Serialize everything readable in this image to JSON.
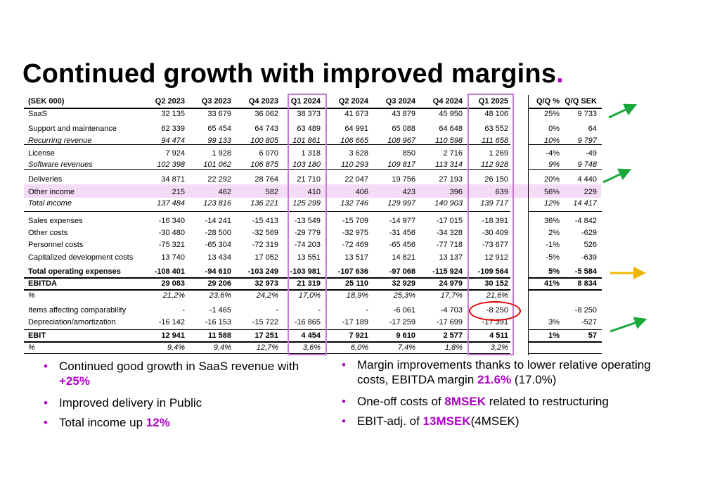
{
  "title": "Continued growth with improved margins",
  "title_dot": ".",
  "header_label": "(SEK 000)",
  "columns": [
    "Q2 2023",
    "Q3 2023",
    "Q4 2023",
    "Q1 2024",
    "Q2 2024",
    "Q3 2024",
    "Q4 2024",
    "Q1 2025"
  ],
  "qq_headers": [
    "Q/Q %",
    "Q/Q SEK"
  ],
  "rows": [
    {
      "label": "SaaS",
      "values": [
        "32 135",
        "33 679",
        "36 062",
        "38 373",
        "41 673",
        "43 879",
        "45 950",
        "48 106"
      ],
      "qq_pct": "25%",
      "qq_sek": "9 733",
      "style": ""
    },
    {
      "label": "Support and maintenance",
      "values": [
        "62 339",
        "65 454",
        "64 743",
        "63 489",
        "64 991",
        "65 088",
        "64 648",
        "63 552"
      ],
      "qq_pct": "0%",
      "qq_sek": "64",
      "style": ""
    },
    {
      "label": "Recurring revenue",
      "values": [
        "94 474",
        "99 133",
        "100 805",
        "101 861",
        "106 665",
        "108 967",
        "110 598",
        "111 658"
      ],
      "qq_pct": "10%",
      "qq_sek": "9 797",
      "style": "ital"
    },
    {
      "label": "License",
      "values": [
        "7 924",
        "1 928",
        "6 070",
        "1 318",
        "3 628",
        "850",
        "2 716",
        "1 269"
      ],
      "qq_pct": "-4%",
      "qq_sek": "-49",
      "style": ""
    },
    {
      "label": "Software revenues",
      "values": [
        "102 398",
        "101 062",
        "106 875",
        "103 180",
        "110 293",
        "109 817",
        "113 314",
        "112 928"
      ],
      "qq_pct": "9%",
      "qq_sek": "9 748",
      "style": "ital"
    },
    {
      "label": "Deliveries",
      "values": [
        "34 871",
        "22 292",
        "28 764",
        "21 710",
        "22 047",
        "19 756",
        "27 193",
        "26 150"
      ],
      "qq_pct": "20%",
      "qq_sek": "4 440",
      "style": ""
    },
    {
      "label": "Other income",
      "values": [
        "215",
        "462",
        "582",
        "410",
        "406",
        "423",
        "396",
        "639"
      ],
      "qq_pct": "56%",
      "qq_sek": "229",
      "style": ""
    },
    {
      "label": "Total income",
      "values": [
        "137 484",
        "123 816",
        "136 221",
        "125 299",
        "132 746",
        "129 997",
        "140 903",
        "139 717"
      ],
      "qq_pct": "12%",
      "qq_sek": "14 417",
      "style": "ital"
    },
    {
      "label": "Sales expenses",
      "values": [
        "-16 340",
        "-14 241",
        "-15 413",
        "-13 549",
        "-15 709",
        "-14 977",
        "-17 015",
        "-18 391"
      ],
      "qq_pct": "36%",
      "qq_sek": "-4 842",
      "style": ""
    },
    {
      "label": "Other costs",
      "values": [
        "-30 480",
        "-28 500",
        "-32 569",
        "-29 779",
        "-32 975",
        "-31 456",
        "-34 328",
        "-30 409"
      ],
      "qq_pct": "2%",
      "qq_sek": "-629",
      "style": ""
    },
    {
      "label": "Personnel costs",
      "values": [
        "-75 321",
        "-65 304",
        "-72 319",
        "-74 203",
        "-72 469",
        "-65 456",
        "-77 718",
        "-73 677"
      ],
      "qq_pct": "-1%",
      "qq_sek": "526",
      "style": ""
    },
    {
      "label": "Capitalized development costs",
      "values": [
        "13 740",
        "13 434",
        "17 052",
        "13 551",
        "13 517",
        "14 821",
        "13 137",
        "12 912"
      ],
      "qq_pct": "-5%",
      "qq_sek": "-639",
      "style": ""
    },
    {
      "label": "Total operating expenses",
      "values": [
        "-108 401",
        "-94 610",
        "-103 249",
        "-103 981",
        "-107 636",
        "-97 068",
        "-115 924",
        "-109 564"
      ],
      "qq_pct": "5%",
      "qq_sek": "-5 584",
      "style": "bold"
    },
    {
      "label": "EBITDA",
      "values": [
        "29 083",
        "29 206",
        "32 973",
        "21 319",
        "25 110",
        "32 929",
        "24 979",
        "30 152"
      ],
      "qq_pct": "41%",
      "qq_sek": "8 834",
      "style": "bold"
    },
    {
      "label": "%",
      "values": [
        "21,2%",
        "23,6%",
        "24,2%",
        "17,0%",
        "18,9%",
        "25,3%",
        "17,7%",
        "21,6%"
      ],
      "qq_pct": "",
      "qq_sek": "",
      "style": "ital"
    },
    {
      "label": "Items affecting comparability",
      "values": [
        "-",
        "-1 465",
        "-",
        "-",
        "-",
        "-6 061",
        "-4 703",
        "-8 250"
      ],
      "qq_pct": "",
      "qq_sek": "-8 250",
      "style": ""
    },
    {
      "label": "Depreciation/amortization",
      "values": [
        "-16 142",
        "-16 153",
        "-15 722",
        "-16 865",
        "-17 189",
        "-17 259",
        "-17 699",
        "-17 391"
      ],
      "qq_pct": "3%",
      "qq_sek": "-527",
      "style": ""
    },
    {
      "label": "EBIT",
      "values": [
        "12 941",
        "11 588",
        "17 251",
        "4 454",
        "7 921",
        "9 610",
        "2 577",
        "4 511"
      ],
      "qq_pct": "1%",
      "qq_sek": "57",
      "style": "bold"
    },
    {
      "label": "%",
      "values": [
        "9,4%",
        "9,4%",
        "12,7%",
        "3,6%",
        "6,0%",
        "7,4%",
        "1,8%",
        "3,2%"
      ],
      "qq_pct": "",
      "qq_sek": "",
      "style": "ital"
    }
  ],
  "colors": {
    "accent": "#b000c8",
    "highlight_row": "#f4dcf6",
    "column_box": "#c879d8",
    "arrow_green": "#1aa83a",
    "arrow_orange": "#f0b400",
    "circle_red": "#e00000"
  },
  "arrows": [
    "green-up",
    "green-up",
    "orange-right",
    "green-up"
  ],
  "bullets_left": [
    {
      "before": "Continued good growth in SaaS revenue with ",
      "hl": "+25%",
      "after": ""
    },
    {
      "before": "Improved delivery in Public",
      "hl": "",
      "after": ""
    },
    {
      "before": "Total income up ",
      "hl": "12%",
      "after": ""
    }
  ],
  "bullets_right": [
    {
      "before": "Margin improvements thanks to lower relative operating costs, EBITDA margin ",
      "hl": "21.6%",
      "after": " (17.0%)"
    },
    {
      "before": "One-off costs of ",
      "hl": "8MSEK",
      "after": " related to restructuring"
    },
    {
      "before": "EBIT-adj. of ",
      "hl": "13MSEK",
      "after": "(4MSEK)"
    }
  ]
}
